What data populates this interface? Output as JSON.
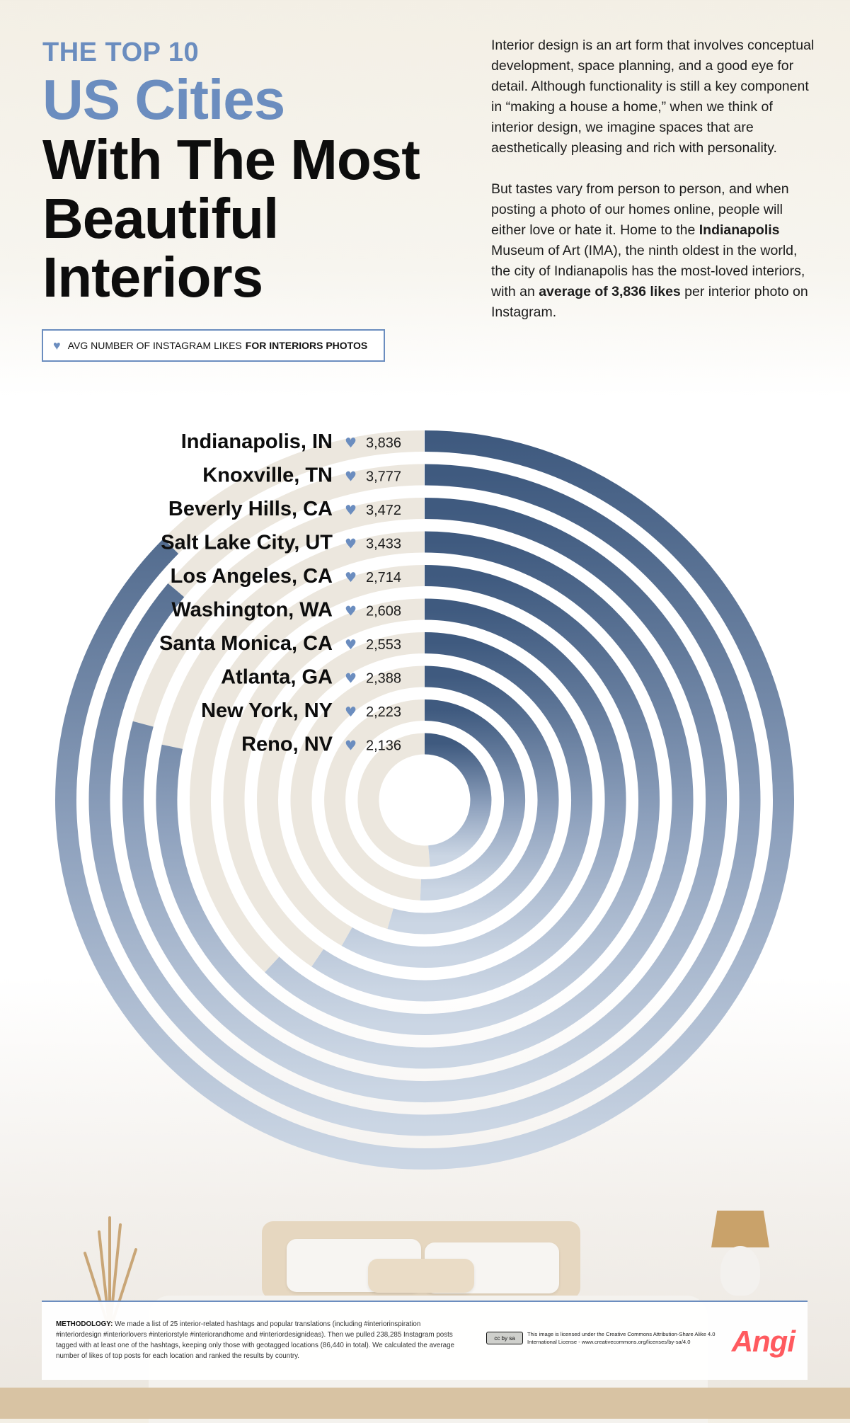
{
  "header": {
    "eyebrow": "THE TOP 10",
    "title_accent": "US Cities",
    "title_main": "With The Most Beautiful Interiors"
  },
  "intro": {
    "paragraph1": "Interior design is an art form that involves conceptual development, space planning, and a good eye for detail. Although functionality is still a key component in “making a house a home,” when we think of interior design, we imagine spaces that are aesthetically pleasing and rich with personality.",
    "p2_part1": "But tastes vary from person to person, and when posting a photo of our homes online, people will either love or hate it. Home to the ",
    "p2_bold1": "Indianapolis",
    "p2_part2": " Museum of Art (IMA), the ninth oldest in the world, the city of Indianapolis has the most-loved interiors, with an ",
    "p2_bold2": "average of 3,836 likes",
    "p2_part3": " per interior photo on Instagram."
  },
  "legend": {
    "icon": "heart-icon",
    "text": "AVG NUMBER OF INSTAGRAM LIKES",
    "text_bold": "FOR INTERIORS PHOTOS"
  },
  "chart_data": {
    "type": "radial-bar",
    "title": "THE TOP 10 US Cities With The Most Beautiful Interiors",
    "value_label": "AVG NUMBER OF INSTAGRAM LIKES FOR INTERIORS PHOTOS",
    "categories": [
      "Indianapolis, IN",
      "Knoxville, TN",
      "Beverly Hills, CA",
      "Salt Lake City, UT",
      "Los Angeles, CA",
      "Washington, WA",
      "Santa Monica, CA",
      "Atlanta, GA",
      "New York, NY",
      "Reno, NV"
    ],
    "values": [
      3836,
      3777,
      3472,
      3433,
      2714,
      2608,
      2553,
      2388,
      2223,
      2136
    ],
    "value_labels": [
      "3,836",
      "3,777",
      "3,472",
      "3,433",
      "2,714",
      "2,608",
      "2,553",
      "2,388",
      "2,223",
      "2,136"
    ],
    "colors": {
      "bar_start": "#3f5a7f",
      "bar_end": "#cbd6e4",
      "track": "#ece7de",
      "heart": "#6b8dbf"
    }
  },
  "footer": {
    "methodology_label": "METHODOLOGY:",
    "methodology_text": "We made a list of 25 interior-related hashtags and popular translations (including #interiorinspiration #interiordesign #interiorlovers #interiorstyle #interiorandhome and #interiordesignideas). Then we pulled 238,285 Instagram posts tagged with at least one of the hashtags, keeping only those with geotagged locations (86,440 in total). We calculated the average number of likes of top posts for each location and ranked the results by country.",
    "cc_badge": "cc by sa",
    "license_text": "This image is licensed under the Creative Commons Attribution-Share Alike 4.0 International License - www.creativecommons.org/licenses/by-sa/4.0",
    "brand": "Angi"
  }
}
